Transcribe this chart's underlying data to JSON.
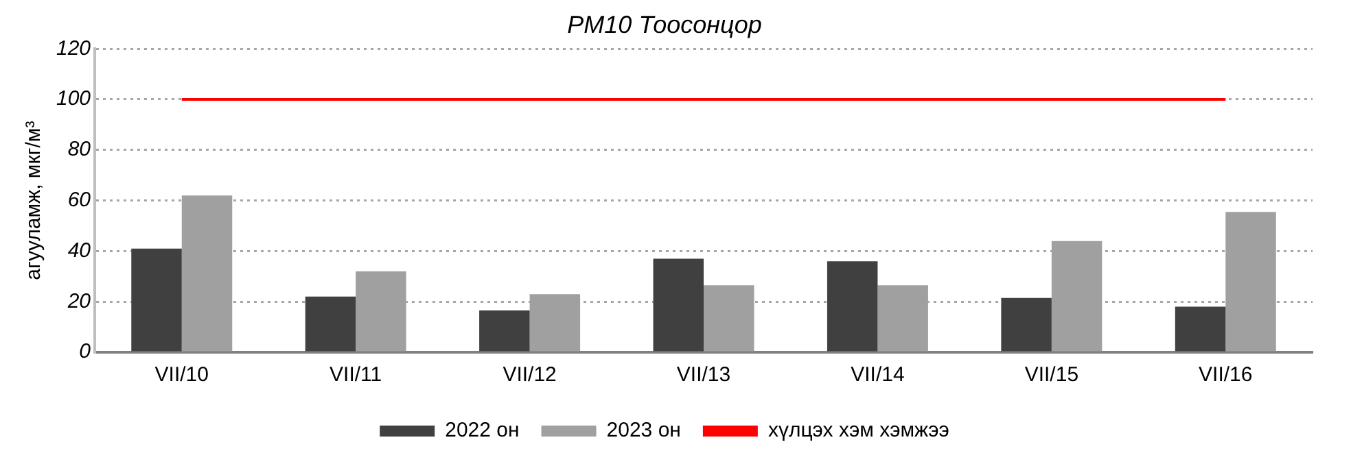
{
  "chart_data": {
    "type": "bar",
    "title": "PM10 Тоосонцор",
    "ylabel": "агууламж, мкг/м³",
    "categories": [
      "VII/10",
      "VII/11",
      "VII/12",
      "VII/13",
      "VII/14",
      "VII/15",
      "VII/16"
    ],
    "series": [
      {
        "name": "2022 он",
        "color": "#404040",
        "values": [
          41,
          22,
          16.5,
          37,
          36,
          21.5,
          18
        ]
      },
      {
        "name": "2023 он",
        "color": "#a0a0a0",
        "values": [
          62,
          32,
          23,
          26.5,
          26.5,
          44,
          55.5
        ]
      },
      {
        "name": "хүлцэх хэм хэмжээ",
        "type": "line",
        "color": "#ff0000",
        "values": [
          100,
          100,
          100,
          100,
          100,
          100,
          100
        ]
      }
    ],
    "ylim": [
      0,
      120
    ],
    "yticks": [
      0,
      20,
      40,
      60,
      80,
      100,
      120
    ],
    "grid": "y",
    "legend": "bottom",
    "marker": "none"
  }
}
